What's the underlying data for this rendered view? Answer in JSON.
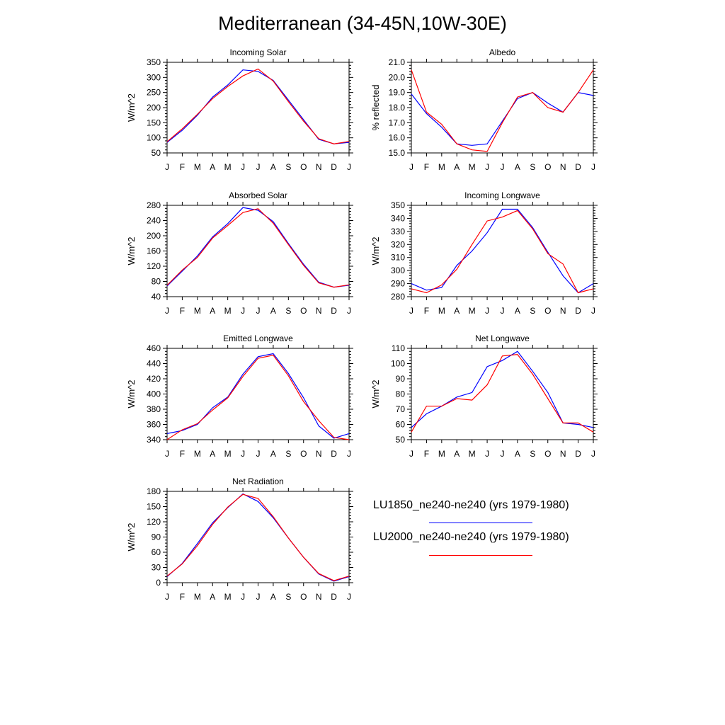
{
  "title": "Mediterranean (34-45N,10W-30E)",
  "months": [
    "J",
    "F",
    "M",
    "A",
    "M",
    "J",
    "J",
    "A",
    "S",
    "O",
    "N",
    "D",
    "J"
  ],
  "colors": {
    "blue": "#0000ff",
    "red": "#ff0000",
    "axis": "#000000"
  },
  "legend": {
    "items": [
      {
        "label": "LU1850_ne240-ne240 (yrs 1979-1980)",
        "color": "#0000ff"
      },
      {
        "label": "LU2000_ne240-ne240 (yrs 1979-1980)",
        "color": "#ff0000"
      }
    ]
  },
  "chart_data": [
    {
      "type": "line",
      "title": "Incoming Solar",
      "ylabel": "W/m^2",
      "ylim": [
        50,
        350
      ],
      "yticks": [
        50,
        100,
        150,
        200,
        250,
        300,
        350
      ],
      "ytick_labels": [
        "50",
        "100",
        "150",
        "200",
        "250",
        "300",
        "350"
      ],
      "series": [
        {
          "name": "LU1850_ne240-ne240 (yrs 1979-1980)",
          "color": "#0000ff",
          "values": [
            85,
            125,
            175,
            235,
            275,
            325,
            320,
            290,
            225,
            160,
            95,
            80,
            85
          ]
        },
        {
          "name": "LU2000_ne240-ne240 (yrs 1979-1980)",
          "color": "#ff0000",
          "values": [
            87,
            130,
            178,
            230,
            270,
            305,
            328,
            288,
            220,
            155,
            97,
            80,
            88
          ]
        }
      ]
    },
    {
      "type": "line",
      "title": "Albedo",
      "ylabel": "% reflected",
      "ylim": [
        15,
        21
      ],
      "yticks": [
        15,
        16,
        17,
        18,
        19,
        20,
        21
      ],
      "ytick_labels": [
        "15.0",
        "16.0",
        "17.0",
        "18.0",
        "19.0",
        "20.0",
        "21.0"
      ],
      "series": [
        {
          "name": "LU1850_ne240-ne240 (yrs 1979-1980)",
          "color": "#0000ff",
          "values": [
            18.9,
            17.6,
            16.7,
            15.6,
            15.5,
            15.6,
            17.1,
            18.6,
            19.0,
            18.3,
            17.7,
            19.0,
            18.8
          ]
        },
        {
          "name": "LU2000_ne240-ne240 (yrs 1979-1980)",
          "color": "#ff0000",
          "values": [
            20.5,
            17.7,
            16.9,
            15.6,
            15.2,
            15.1,
            17.0,
            18.7,
            19.0,
            18.0,
            17.7,
            19.0,
            20.5
          ]
        }
      ]
    },
    {
      "type": "line",
      "title": "Absorbed Solar",
      "ylabel": "W/m^2",
      "ylim": [
        40,
        280
      ],
      "yticks": [
        40,
        80,
        120,
        160,
        200,
        240,
        280
      ],
      "ytick_labels": [
        "40",
        "80",
        "120",
        "160",
        "200",
        "240",
        "280"
      ],
      "series": [
        {
          "name": "LU1850_ne240-ne240 (yrs 1979-1980)",
          "color": "#0000ff",
          "values": [
            68,
            107,
            147,
            197,
            232,
            274,
            267,
            237,
            180,
            125,
            78,
            65,
            70
          ]
        },
        {
          "name": "LU2000_ne240-ne240 (yrs 1979-1980)",
          "color": "#ff0000",
          "values": [
            70,
            110,
            143,
            194,
            227,
            261,
            271,
            233,
            177,
            122,
            76,
            65,
            71
          ]
        }
      ]
    },
    {
      "type": "line",
      "title": "Incoming Longwave",
      "ylabel": "W/m^2",
      "ylim": [
        280,
        350
      ],
      "yticks": [
        280,
        290,
        300,
        310,
        320,
        330,
        340,
        350
      ],
      "ytick_labels": [
        "280",
        "290",
        "300",
        "310",
        "320",
        "330",
        "340",
        "350"
      ],
      "series": [
        {
          "name": "LU1850_ne240-ne240 (yrs 1979-1980)",
          "color": "#0000ff",
          "values": [
            290,
            285,
            287,
            304,
            315,
            329,
            347,
            347,
            333,
            314,
            296,
            283,
            290
          ]
        },
        {
          "name": "LU2000_ne240-ne240 (yrs 1979-1980)",
          "color": "#ff0000",
          "values": [
            286,
            283,
            289,
            301,
            320,
            338,
            341,
            346,
            332,
            313,
            305,
            283,
            286
          ]
        }
      ]
    },
    {
      "type": "line",
      "title": "Emitted Longwave",
      "ylabel": "W/m^2",
      "ylim": [
        340,
        460
      ],
      "yticks": [
        340,
        360,
        380,
        400,
        420,
        440,
        460
      ],
      "ytick_labels": [
        "340",
        "360",
        "380",
        "400",
        "420",
        "440",
        "460"
      ],
      "series": [
        {
          "name": "LU1850_ne240-ne240 (yrs 1979-1980)",
          "color": "#0000ff",
          "values": [
            348,
            352,
            360,
            382,
            396,
            426,
            449,
            453,
            427,
            395,
            358,
            342,
            348
          ]
        },
        {
          "name": "LU2000_ne240-ne240 (yrs 1979-1980)",
          "color": "#ff0000",
          "values": [
            340,
            353,
            361,
            379,
            395,
            423,
            447,
            451,
            424,
            390,
            365,
            343,
            340
          ]
        }
      ]
    },
    {
      "type": "line",
      "title": "Net Longwave",
      "ylabel": "W/m^2",
      "ylim": [
        50,
        110
      ],
      "yticks": [
        50,
        60,
        70,
        80,
        90,
        100,
        110
      ],
      "ytick_labels": [
        "50",
        "60",
        "70",
        "80",
        "90",
        "100",
        "110"
      ],
      "series": [
        {
          "name": "LU1850_ne240-ne240 (yrs 1979-1980)",
          "color": "#0000ff",
          "values": [
            58,
            67,
            72,
            78,
            81,
            98,
            102,
            108,
            95,
            81,
            61,
            60,
            58
          ]
        },
        {
          "name": "LU2000_ne240-ne240 (yrs 1979-1980)",
          "color": "#ff0000",
          "values": [
            55,
            72,
            72,
            77,
            76,
            86,
            105,
            106,
            93,
            77,
            61,
            61,
            55
          ]
        }
      ]
    },
    {
      "type": "line",
      "title": "Net Radiation",
      "ylabel": "W/m^2",
      "ylim": [
        0,
        180
      ],
      "yticks": [
        0,
        30,
        60,
        90,
        120,
        150,
        180
      ],
      "ytick_labels": [
        "0",
        "30",
        "60",
        "90",
        "120",
        "150",
        "180"
      ],
      "series": [
        {
          "name": "LU1850_ne240-ne240 (yrs 1979-1980)",
          "color": "#0000ff",
          "values": [
            12,
            38,
            77,
            118,
            148,
            175,
            160,
            128,
            88,
            50,
            17,
            3,
            12
          ]
        },
        {
          "name": "LU2000_ne240-ne240 (yrs 1979-1980)",
          "color": "#ff0000",
          "values": [
            13,
            37,
            73,
            115,
            149,
            174,
            166,
            130,
            88,
            50,
            18,
            4,
            13
          ]
        }
      ]
    }
  ]
}
